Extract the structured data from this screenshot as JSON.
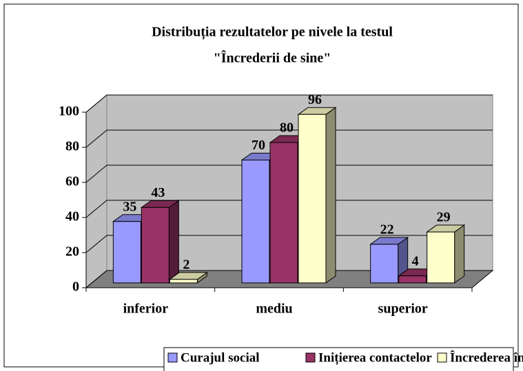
{
  "chart_data": {
    "type": "bar3d",
    "title": [
      "Distribuția rezultatelor pe nivele la testul",
      "\"Încrederii de sine\""
    ],
    "categories": [
      "inferior",
      "mediu",
      "superior"
    ],
    "series": [
      {
        "name": "Curajul social",
        "color": "#9999ff",
        "values": [
          35,
          70,
          22
        ]
      },
      {
        "name": "Inițierea contactelor",
        "color": "#993366",
        "values": [
          43,
          80,
          4
        ]
      },
      {
        "name": "Încrederea în sine",
        "color": "#ffffcc",
        "values": [
          2,
          96,
          29
        ]
      }
    ],
    "ylim": [
      0,
      100
    ],
    "yticks": [
      0,
      20,
      40,
      60,
      80,
      100
    ],
    "grid": true,
    "legend": "bottom"
  }
}
